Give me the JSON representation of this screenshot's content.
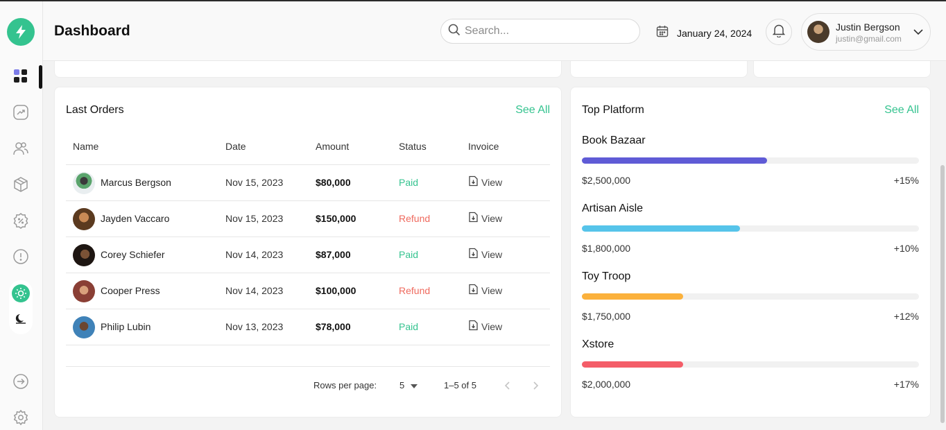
{
  "header": {
    "title": "Dashboard",
    "search_placeholder": "Search...",
    "date": "January 24, 2024",
    "user": {
      "name": "Justin Bergson",
      "email": "justin@gmail.com"
    }
  },
  "sidebar": {
    "icons": [
      "bolt-icon",
      "grid-icon",
      "chart-icon",
      "users-icon",
      "box-icon",
      "discount-icon",
      "alert-icon",
      "sun-icon",
      "moon-icon",
      "logout-icon",
      "settings-icon"
    ],
    "accent": "#34c38f"
  },
  "orders": {
    "title": "Last Orders",
    "see_all": "See All",
    "columns": [
      "Name",
      "Date",
      "Amount",
      "Status",
      "Invoice"
    ],
    "rows": [
      {
        "name": "Marcus Bergson",
        "date": "Nov 15, 2023",
        "amount": "$80,000",
        "status": "Paid",
        "invoice": "View"
      },
      {
        "name": "Jayden Vaccaro",
        "date": "Nov 15, 2023",
        "amount": "$150,000",
        "status": "Refund",
        "invoice": "View"
      },
      {
        "name": "Corey Schiefer",
        "date": "Nov 14, 2023",
        "amount": "$87,000",
        "status": "Paid",
        "invoice": "View"
      },
      {
        "name": "Cooper Press",
        "date": "Nov 14, 2023",
        "amount": "$100,000",
        "status": "Refund",
        "invoice": "View"
      },
      {
        "name": "Philip Lubin",
        "date": "Nov 13, 2023",
        "amount": "$78,000",
        "status": "Paid",
        "invoice": "View"
      }
    ],
    "pagination": {
      "rows_per_page_label": "Rows per page:",
      "rows_per_page": "5",
      "range": "1–5 of 5"
    },
    "status_colors": {
      "Paid": "#34c38f",
      "Refund": "#ef6a5e"
    }
  },
  "platforms": {
    "title": "Top Platform",
    "see_all": "See All",
    "items": [
      {
        "name": "Book Bazaar",
        "value": "$2,500,000",
        "change": "+15%",
        "progress": 0.55,
        "color": "#5f5bd6"
      },
      {
        "name": "Artisan Aisle",
        "value": "$1,800,000",
        "change": "+10%",
        "progress": 0.47,
        "color": "#56c4ea"
      },
      {
        "name": "Toy Troop",
        "value": "$1,750,000",
        "change": "+12%",
        "progress": 0.3,
        "color": "#fbb13c"
      },
      {
        "name": "Xstore",
        "value": "$2,000,000",
        "change": "+17%",
        "progress": 0.3,
        "color": "#f45d68"
      }
    ]
  }
}
